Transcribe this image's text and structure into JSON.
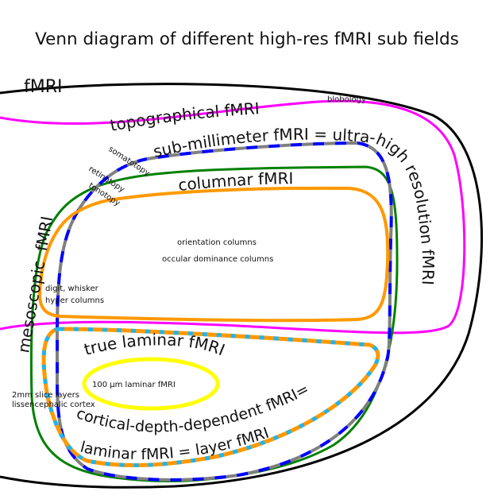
{
  "title": "Venn diagram of different high-res fMRI sub fields",
  "sets": {
    "fmri": {
      "label": "fMRI",
      "color": "#000000"
    },
    "topographical": {
      "label": "topographical fMRI",
      "color": "#ff00ff"
    },
    "submillimeter": {
      "label": "sub-millimeter fMRI = ultra-high resolution fMRI",
      "colors": [
        "#0000ff",
        "#808080"
      ]
    },
    "mesoscopic": {
      "label": "mesoscopic  fMRI",
      "color": "#008000"
    },
    "columnar": {
      "label": "columnar fMRI",
      "color": "#ff9900"
    },
    "laminar": {
      "label_line1": "cortical-depth-dependent fMRI=",
      "label_line2": "laminar fMRI = layer fMRI",
      "colors": [
        "#ff9900",
        "#1eb4f0"
      ]
    },
    "true_laminar": {
      "label": "true laminar fMRI"
    },
    "hundred_um": {
      "label": "100 µm laminar fMRI",
      "color": "#ffff00"
    }
  },
  "annotations": {
    "blobology": "blobology",
    "somatotopy": "somatotopy",
    "retinotopy": "retinotopy",
    "tonotopy": "tonotopy",
    "orientation": "orientation columns",
    "occular": "occular dominance columns",
    "digit_line1": "digit, whisker",
    "digit_line2": "hyper columns",
    "slice_line1": "2mm slice layers",
    "slice_line2": "lissencephalic cortex"
  }
}
